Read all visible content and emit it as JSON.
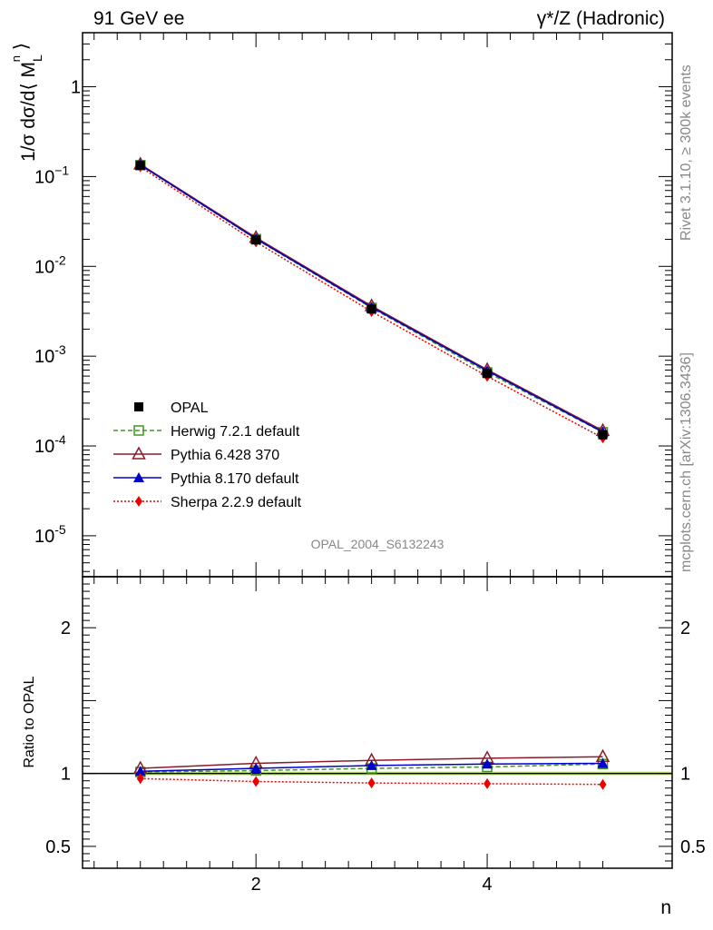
{
  "header": {
    "left_title": "91 GeV ee",
    "right_title": "γ*/Z (Hadronic)"
  },
  "side": {
    "rivet": "Rivet 3.1.10, ≥ 300k events",
    "mcplots": "mcplots.cern.ch [arXiv:1306.3436]"
  },
  "chart_data": [
    {
      "type": "line",
      "name": "main",
      "analysis_label": "OPAL_2004_S6132243",
      "ylabel": "1/σ dσ/d⟨ M_L^n ⟩",
      "yscale": "log",
      "ylim": [
        3.5e-06,
        4
      ],
      "xlim": [
        0.5,
        5.6
      ],
      "y_tick_labels": [
        {
          "value": 1,
          "mant": "1",
          "exp": ""
        },
        {
          "value": 0.1,
          "mant": "10",
          "exp": "−1"
        },
        {
          "value": 0.01,
          "mant": "10",
          "exp": "-2"
        },
        {
          "value": 0.001,
          "mant": "10",
          "exp": "-3"
        },
        {
          "value": 0.0001,
          "mant": "10",
          "exp": "-4"
        },
        {
          "value": 1e-05,
          "mant": "10",
          "exp": "-5"
        }
      ],
      "x": [
        1,
        2,
        3,
        4,
        5
      ],
      "series": [
        {
          "name": "OPAL",
          "values": [
            0.133,
            0.0197,
            0.00335,
            0.00064,
            0.000133
          ]
        },
        {
          "name": "Herwig 7.2.1 default",
          "values": [
            0.134,
            0.0201,
            0.00345,
            0.00066,
            0.000142
          ]
        },
        {
          "name": "Pythia 6.428 370",
          "values": [
            0.137,
            0.0209,
            0.00362,
            0.000707,
            0.000148
          ]
        },
        {
          "name": "Pythia 8.170 default",
          "values": [
            0.135,
            0.0203,
            0.00351,
            0.000689,
            0.000143
          ]
        },
        {
          "name": "Sherpa 2.2.9 default",
          "values": [
            0.128,
            0.0187,
            0.00314,
            0.000597,
            0.000123
          ]
        }
      ]
    },
    {
      "type": "line",
      "name": "ratio",
      "ylabel": "Ratio to OPAL",
      "xlabel": "n",
      "ylim": [
        0.35,
        2.35
      ],
      "xlim": [
        0.5,
        5.6
      ],
      "x_tick_labels": [
        "2",
        "4"
      ],
      "y_tick_labels": [
        "2",
        "1",
        "0.5"
      ],
      "x": [
        1,
        2,
        3,
        4,
        5
      ],
      "series": [
        {
          "name": "Herwig 7.2.1 default",
          "values": [
            1.01,
            1.02,
            1.035,
            1.045,
            1.065
          ]
        },
        {
          "name": "Pythia 6.428 370",
          "values": [
            1.035,
            1.07,
            1.09,
            1.105,
            1.115
          ]
        },
        {
          "name": "Pythia 8.170 default",
          "values": [
            1.015,
            1.035,
            1.055,
            1.065,
            1.07
          ]
        },
        {
          "name": "Sherpa 2.2.9 default",
          "values": [
            0.965,
            0.945,
            0.935,
            0.93,
            0.925
          ]
        }
      ],
      "uncertainty_band": [
        0.985,
        1.015
      ]
    }
  ],
  "styles": {
    "OPAL": {
      "color": "#000000",
      "marker": "filled-square",
      "dash": ""
    },
    "Herwig 7.2.1 default": {
      "color": "#3a9a1a",
      "marker": "open-square",
      "dash": "5,3"
    },
    "Pythia 6.428 370": {
      "color": "#8b1a2a",
      "marker": "open-triangle",
      "dash": ""
    },
    "Pythia 8.170 default": {
      "color": "#0000cc",
      "marker": "filled-triangle",
      "dash": ""
    },
    "Sherpa 2.2.9 default": {
      "color": "#ee0000",
      "marker": "filled-diamond",
      "dash": "2,2"
    }
  }
}
